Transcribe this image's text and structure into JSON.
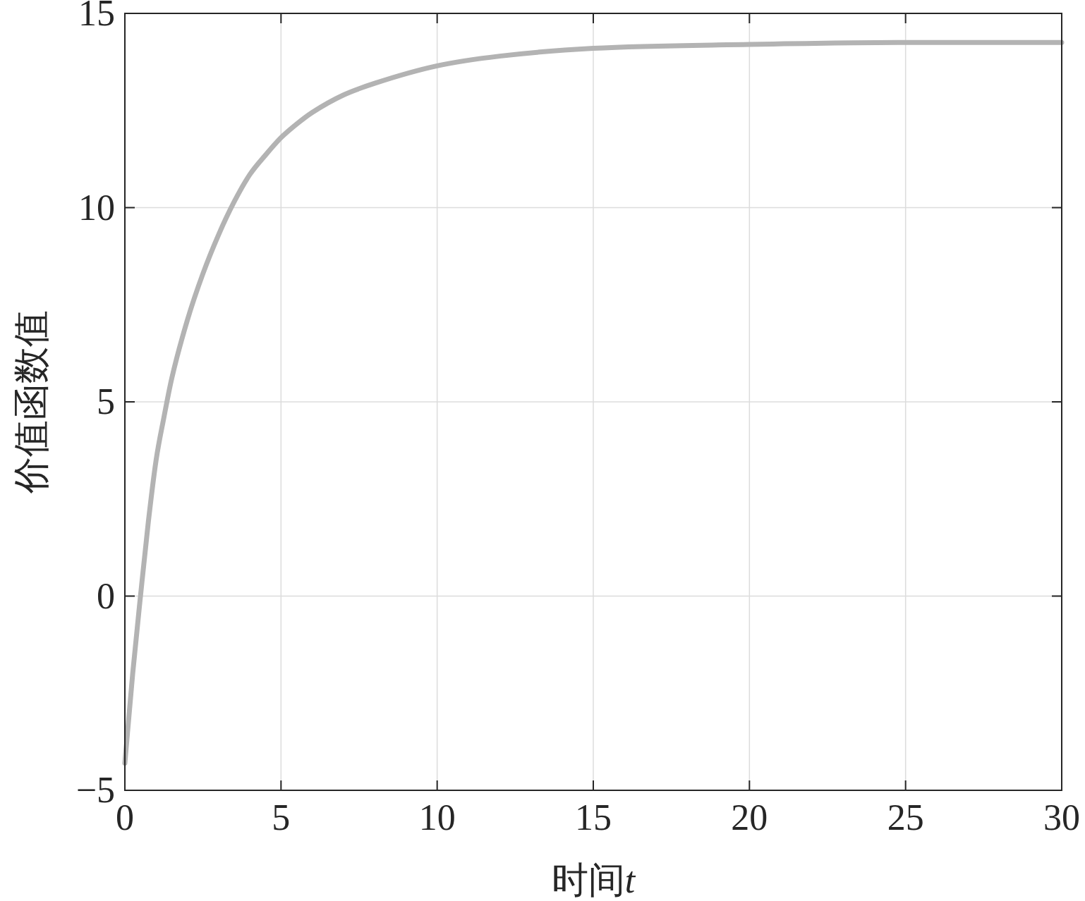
{
  "chart_data": {
    "type": "line",
    "xlabel": "时间t",
    "ylabel": "价值函数值",
    "x": [
      0,
      0.25,
      0.5,
      0.75,
      1,
      1.25,
      1.5,
      2,
      2.5,
      3,
      3.5,
      4,
      4.5,
      5,
      5.5,
      6,
      7,
      8,
      10,
      12,
      15,
      20,
      25,
      30
    ],
    "values": [
      -4.3,
      -2.0,
      0,
      1.9,
      3.5,
      4.6,
      5.6,
      7.1,
      8.3,
      9.3,
      10.15,
      10.85,
      11.35,
      11.8,
      12.15,
      12.45,
      12.9,
      13.2,
      13.65,
      13.9,
      14.1,
      14.2,
      14.25,
      14.25
    ],
    "color": "#b3b3b3",
    "xlim": [
      0,
      30
    ],
    "ylim": [
      -5,
      15
    ],
    "xticks": [
      0,
      5,
      10,
      15,
      20,
      25,
      30
    ],
    "yticks": [
      -5,
      0,
      5,
      10,
      15
    ],
    "grid": true,
    "marker": "none",
    "line_style": "solid"
  }
}
